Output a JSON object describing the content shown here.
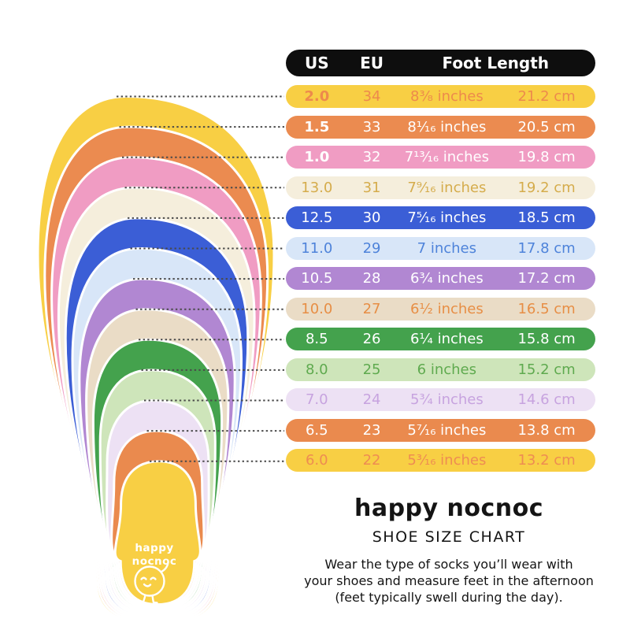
{
  "table": {
    "header": {
      "us": "US",
      "eu": "EU",
      "foot_length": "Foot Length"
    }
  },
  "chart_data": {
    "type": "table",
    "title": "happy nocnoc SHOE SIZE CHART",
    "columns": [
      "US",
      "EU",
      "Foot Length (inches)",
      "Foot Length (cm)"
    ],
    "rows": [
      {
        "us": "2.0",
        "eu": "34",
        "inches": "8³⁄₈ inches",
        "cm": "21.2 cm",
        "bg": "#F8CF44",
        "fg": "#ED8A4C",
        "us_bold": true
      },
      {
        "us": "1.5",
        "eu": "33",
        "inches": "8¹⁄₁₆ inches",
        "cm": "20.5 cm",
        "bg": "#EB8B50",
        "fg": "#FFFFFF",
        "us_bold": true
      },
      {
        "us": "1.0",
        "eu": "32",
        "inches": "7¹³⁄₁₆ inches",
        "cm": "19.8 cm",
        "bg": "#F09CC3",
        "fg": "#FFFFFF",
        "us_bold": true
      },
      {
        "us": "13.0",
        "eu": "31",
        "inches": "7⁹⁄₁₆ inches",
        "cm": "19.2 cm",
        "bg": "#F5EEDC",
        "fg": "#D5AC4C",
        "us_bold": false
      },
      {
        "us": "12.5",
        "eu": "30",
        "inches": "7⁵⁄₁₆ inches",
        "cm": "18.5 cm",
        "bg": "#3B5ED6",
        "fg": "#FFFFFF",
        "us_bold": false
      },
      {
        "us": "11.0",
        "eu": "29",
        "inches": "7 inches",
        "cm": "17.8 cm",
        "bg": "#D8E6F8",
        "fg": "#4E83DA",
        "us_bold": false
      },
      {
        "us": "10.5",
        "eu": "28",
        "inches": "6³⁄₄ inches",
        "cm": "17.2 cm",
        "bg": "#B187D2",
        "fg": "#FFFFFF",
        "us_bold": false
      },
      {
        "us": "10.0",
        "eu": "27",
        "inches": "6¹⁄₂ inches",
        "cm": "16.5 cm",
        "bg": "#EADCC6",
        "fg": "#E78E45",
        "us_bold": false
      },
      {
        "us": "8.5",
        "eu": "26",
        "inches": "6¹⁄₄ inches",
        "cm": "15.8 cm",
        "bg": "#44A24D",
        "fg": "#FFFFFF",
        "us_bold": false
      },
      {
        "us": "8.0",
        "eu": "25",
        "inches": "6 inches",
        "cm": "15.2 cm",
        "bg": "#CEE5BA",
        "fg": "#5FAA4F",
        "us_bold": false
      },
      {
        "us": "7.0",
        "eu": "24",
        "inches": "5³⁄₄ inches",
        "cm": "14.6 cm",
        "bg": "#EDE1F4",
        "fg": "#C7A3DF",
        "us_bold": false
      },
      {
        "us": "6.5",
        "eu": "23",
        "inches": "5⁷⁄₁₆ inches",
        "cm": "13.8 cm",
        "bg": "#EA8A4E",
        "fg": "#FFFFFF",
        "us_bold": false
      },
      {
        "us": "6.0",
        "eu": "22",
        "inches": "5³⁄₁₆ inches",
        "cm": "13.2 cm",
        "bg": "#F8CF44",
        "fg": "#EE8C52",
        "us_bold": false
      }
    ]
  },
  "insole_label": {
    "line1": "happy",
    "line2": "nocnoc"
  },
  "footer": {
    "brand": "happy nocnoc",
    "subtitle": "SHOE SIZE CHART",
    "note_lines": [
      "Wear the type of socks you’ll wear with",
      "your shoes and measure feet in the afternoon",
      "(feet typically swell during the day)."
    ]
  },
  "colors": {
    "page_bg": "#FFFFFF",
    "header_bg": "#0E0E0E",
    "header_fg": "#FFFFFF",
    "dotted_line": "#4A4A4A",
    "insole_outline": "#FFFFFF",
    "mascot_stroke": "#FFFFFF"
  }
}
